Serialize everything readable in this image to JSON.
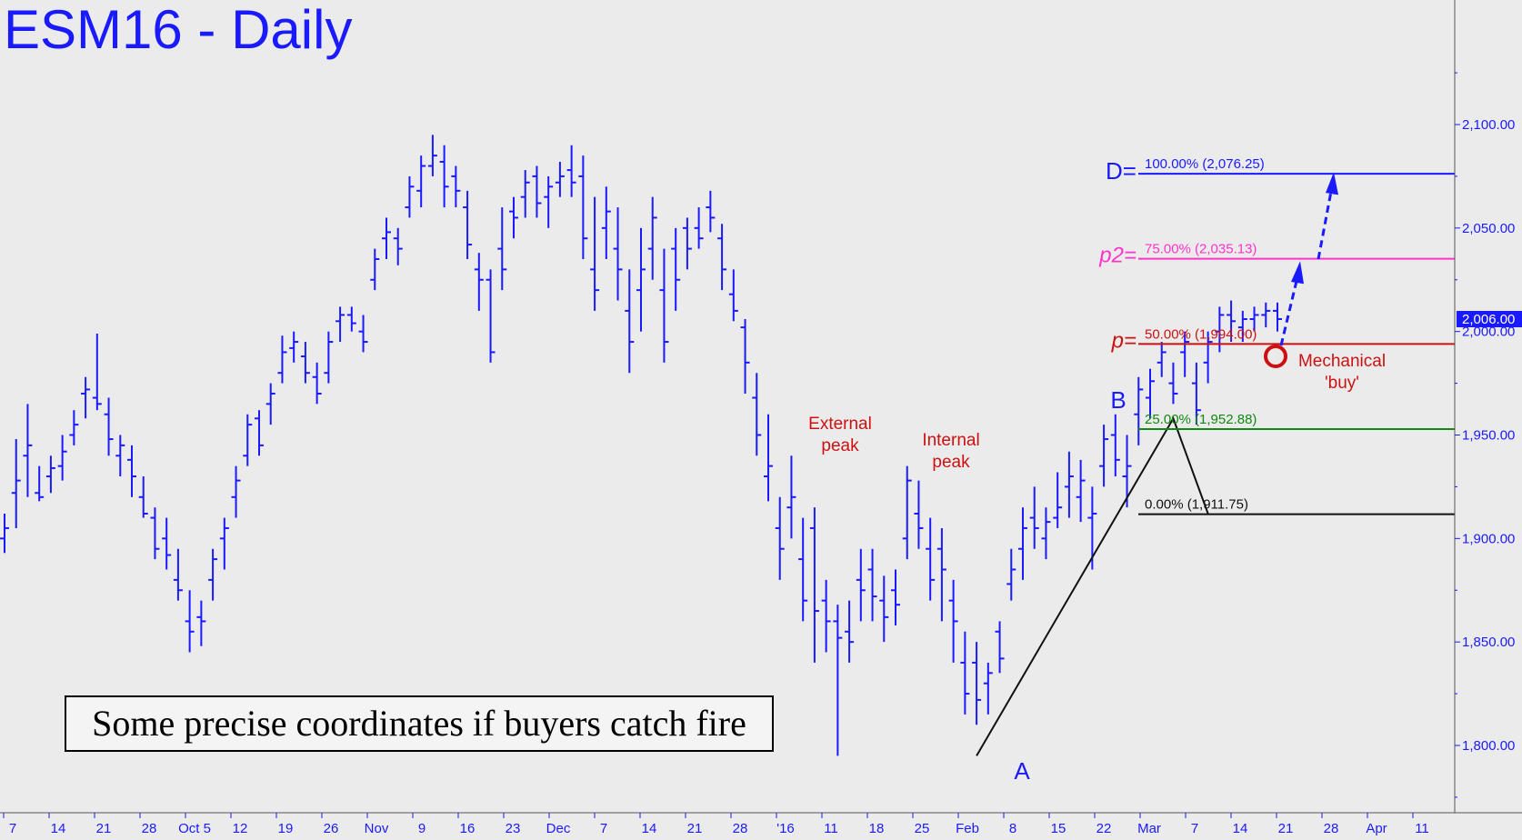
{
  "chart_data": {
    "type": "bar",
    "subtype": "ohlc",
    "title": "ESM16 - Daily",
    "ylim": [
      1770,
      2150
    ],
    "y_ticks": [
      {
        "value": 1800,
        "label": "1,800.00"
      },
      {
        "value": 1850,
        "label": "1,850.00"
      },
      {
        "value": 1900,
        "label": "1,900.00"
      },
      {
        "value": 1950,
        "label": "1,950.00"
      },
      {
        "value": 2000,
        "label": "2,000.00"
      },
      {
        "value": 2050,
        "label": "2,050.00"
      },
      {
        "value": 2100,
        "label": "2,100.00"
      }
    ],
    "x_ticks": [
      "7",
      "14",
      "21",
      "28",
      "Oct 5",
      "12",
      "19",
      "26",
      "Nov",
      "9",
      "16",
      "23",
      "Dec",
      "7",
      "14",
      "21",
      "28",
      "'16",
      "11",
      "18",
      "25",
      "Feb",
      "8",
      "15",
      "22",
      "Mar",
      "7",
      "14",
      "21",
      "28",
      "Apr",
      "11"
    ],
    "last_price": {
      "value": 2006,
      "label": "2,006.00"
    },
    "bars": [
      [
        1900,
        1912,
        1893,
        1905
      ],
      [
        1922,
        1948,
        1905,
        1928
      ],
      [
        1940,
        1965,
        1920,
        1945
      ],
      [
        1922,
        1935,
        1918,
        1920
      ],
      [
        1930,
        1940,
        1922,
        1934
      ],
      [
        1935,
        1950,
        1928,
        1942
      ],
      [
        1950,
        1962,
        1945,
        1955
      ],
      [
        1970,
        1978,
        1958,
        1972
      ],
      [
        1968,
        1999,
        1962,
        1965
      ],
      [
        1960,
        1968,
        1940,
        1948
      ],
      [
        1940,
        1950,
        1930,
        1945
      ],
      [
        1938,
        1945,
        1920,
        1930
      ],
      [
        1920,
        1930,
        1910,
        1912
      ],
      [
        1910,
        1915,
        1890,
        1895
      ],
      [
        1900,
        1910,
        1885,
        1892
      ],
      [
        1880,
        1895,
        1870,
        1875
      ],
      [
        1860,
        1875,
        1845,
        1855
      ],
      [
        1862,
        1870,
        1848,
        1860
      ],
      [
        1880,
        1895,
        1870,
        1890
      ],
      [
        1900,
        1910,
        1885,
        1905
      ],
      [
        1920,
        1935,
        1910,
        1928
      ],
      [
        1940,
        1960,
        1935,
        1955
      ],
      [
        1958,
        1962,
        1940,
        1945
      ],
      [
        1965,
        1975,
        1955,
        1970
      ],
      [
        1980,
        1998,
        1975,
        1990
      ],
      [
        1992,
        2000,
        1985,
        1995
      ],
      [
        1988,
        1995,
        1975,
        1980
      ],
      [
        1978,
        1985,
        1965,
        1970
      ],
      [
        1980,
        2000,
        1975,
        1995
      ],
      [
        2005,
        2012,
        1995,
        2008
      ],
      [
        2008,
        2012,
        2000,
        2004
      ],
      [
        2000,
        2008,
        1990,
        1995
      ],
      [
        2025,
        2040,
        2020,
        2035
      ],
      [
        2045,
        2055,
        2035,
        2048
      ],
      [
        2045,
        2050,
        2032,
        2040
      ],
      [
        2060,
        2075,
        2055,
        2070
      ],
      [
        2068,
        2085,
        2060,
        2080
      ],
      [
        2080,
        2095,
        2075,
        2085
      ],
      [
        2082,
        2090,
        2060,
        2070
      ],
      [
        2075,
        2080,
        2060,
        2068
      ],
      [
        2060,
        2068,
        2035,
        2042
      ],
      [
        2030,
        2038,
        2010,
        2025
      ],
      [
        2025,
        2030,
        1985,
        1990
      ],
      [
        2040,
        2060,
        2020,
        2030
      ],
      [
        2058,
        2065,
        2045,
        2055
      ],
      [
        2065,
        2078,
        2055,
        2072
      ],
      [
        2075,
        2080,
        2055,
        2062
      ],
      [
        2065,
        2075,
        2050,
        2070
      ],
      [
        2072,
        2082,
        2065,
        2075
      ],
      [
        2078,
        2090,
        2065,
        2072
      ],
      [
        2075,
        2085,
        2035,
        2045
      ],
      [
        2030,
        2065,
        2010,
        2020
      ],
      [
        2050,
        2070,
        2035,
        2058
      ],
      [
        2040,
        2060,
        2015,
        2030
      ],
      [
        2010,
        2030,
        1980,
        1995
      ],
      [
        2020,
        2050,
        2000,
        2030
      ],
      [
        2040,
        2065,
        2025,
        2055
      ],
      [
        2020,
        2040,
        1985,
        1995
      ],
      [
        2040,
        2050,
        2010,
        2025
      ],
      [
        2050,
        2055,
        2030,
        2040
      ],
      [
        2050,
        2060,
        2040,
        2045
      ],
      [
        2060,
        2068,
        2048,
        2055
      ],
      [
        2045,
        2052,
        2020,
        2030
      ],
      [
        2018,
        2030,
        2005,
        2010
      ],
      [
        2002,
        2006,
        1970,
        1985
      ],
      [
        1968,
        1980,
        1940,
        1950
      ],
      [
        1930,
        1960,
        1918,
        1935
      ],
      [
        1905,
        1920,
        1880,
        1895
      ],
      [
        1915,
        1940,
        1900,
        1920
      ],
      [
        1890,
        1910,
        1860,
        1870
      ],
      [
        1905,
        1915,
        1840,
        1865
      ],
      [
        1870,
        1880,
        1845,
        1860
      ],
      [
        1860,
        1868,
        1795,
        1852
      ],
      [
        1855,
        1870,
        1840,
        1850
      ],
      [
        1880,
        1895,
        1860,
        1875
      ],
      [
        1885,
        1895,
        1860,
        1872
      ],
      [
        1870,
        1882,
        1850,
        1862
      ],
      [
        1875,
        1885,
        1858,
        1868
      ],
      [
        1900,
        1935,
        1890,
        1928
      ],
      [
        1912,
        1928,
        1895,
        1905
      ],
      [
        1895,
        1910,
        1870,
        1880
      ],
      [
        1895,
        1905,
        1860,
        1885
      ],
      [
        1870,
        1880,
        1840,
        1860
      ],
      [
        1840,
        1855,
        1815,
        1825
      ],
      [
        1840,
        1850,
        1810,
        1822
      ],
      [
        1830,
        1840,
        1815,
        1835
      ],
      [
        1855,
        1860,
        1835,
        1842
      ],
      [
        1878,
        1895,
        1870,
        1885
      ],
      [
        1895,
        1915,
        1880,
        1905
      ],
      [
        1910,
        1925,
        1895,
        1905
      ],
      [
        1900,
        1915,
        1890,
        1908
      ],
      [
        1910,
        1932,
        1905,
        1915
      ],
      [
        1925,
        1942,
        1910,
        1930
      ],
      [
        1920,
        1938,
        1908,
        1928
      ],
      [
        1910,
        1925,
        1885,
        1912
      ],
      [
        1935,
        1955,
        1925,
        1948
      ],
      [
        1950,
        1960,
        1930,
        1938
      ],
      [
        1930,
        1950,
        1915,
        1935
      ],
      [
        1960,
        1978,
        1945,
        1972
      ],
      [
        1968,
        1982,
        1958,
        1976
      ],
      [
        1985,
        1995,
        1978,
        1990
      ],
      [
        1975,
        1985,
        1965,
        1970
      ],
      [
        1990,
        2000,
        1978,
        1995
      ],
      [
        1975,
        1985,
        1955,
        1962
      ],
      [
        1985,
        2000,
        1975,
        1995
      ],
      [
        2000,
        2012,
        1990,
        2008
      ],
      [
        2008,
        2015,
        1995,
        2005
      ],
      [
        2002,
        2010,
        1995,
        2006
      ],
      [
        2006,
        2012,
        2000,
        2008
      ],
      [
        2008,
        2014,
        2002,
        2010
      ],
      [
        2010,
        2014,
        2000,
        2006
      ]
    ],
    "swing_line": [
      {
        "bar": 84,
        "value": 1795
      },
      {
        "bar": 101,
        "value": 1958
      },
      {
        "bar": 104,
        "value": 1912
      }
    ],
    "levels": [
      {
        "name": "D",
        "prefix": "D=",
        "label": "100.00% (2,076.25)",
        "value": 2076.25,
        "color": "#1a1aff"
      },
      {
        "name": "p2",
        "prefix": "p2=",
        "label": "75.00% (2,035.13)",
        "value": 2035.13,
        "color": "#ff33cc"
      },
      {
        "name": "p",
        "prefix": "p=",
        "label": "50.00% (1,994.00)",
        "value": 1994.0,
        "color": "#cc1111"
      },
      {
        "name": "c",
        "prefix": "",
        "label": "25.00% (1,952.88)",
        "value": 1952.88,
        "color": "#118811"
      },
      {
        "name": "base",
        "prefix": "",
        "label": "0.00% (1,911.75)",
        "value": 1911.75,
        "color": "#111111"
      }
    ],
    "annotations": {
      "external_peak": "External\npeak",
      "internal_peak": "Internal\npeak",
      "point_a": "A",
      "point_b": "B",
      "mechanical_buy": "Mechanical\n'buy'",
      "caption": "Some precise coordinates if buyers catch fire"
    },
    "colors": {
      "bars": "#1a1aff",
      "background": "#ebebeb",
      "swing": "#111111",
      "buy_circle": "#cc1111",
      "projection": "#1a1aff"
    }
  }
}
